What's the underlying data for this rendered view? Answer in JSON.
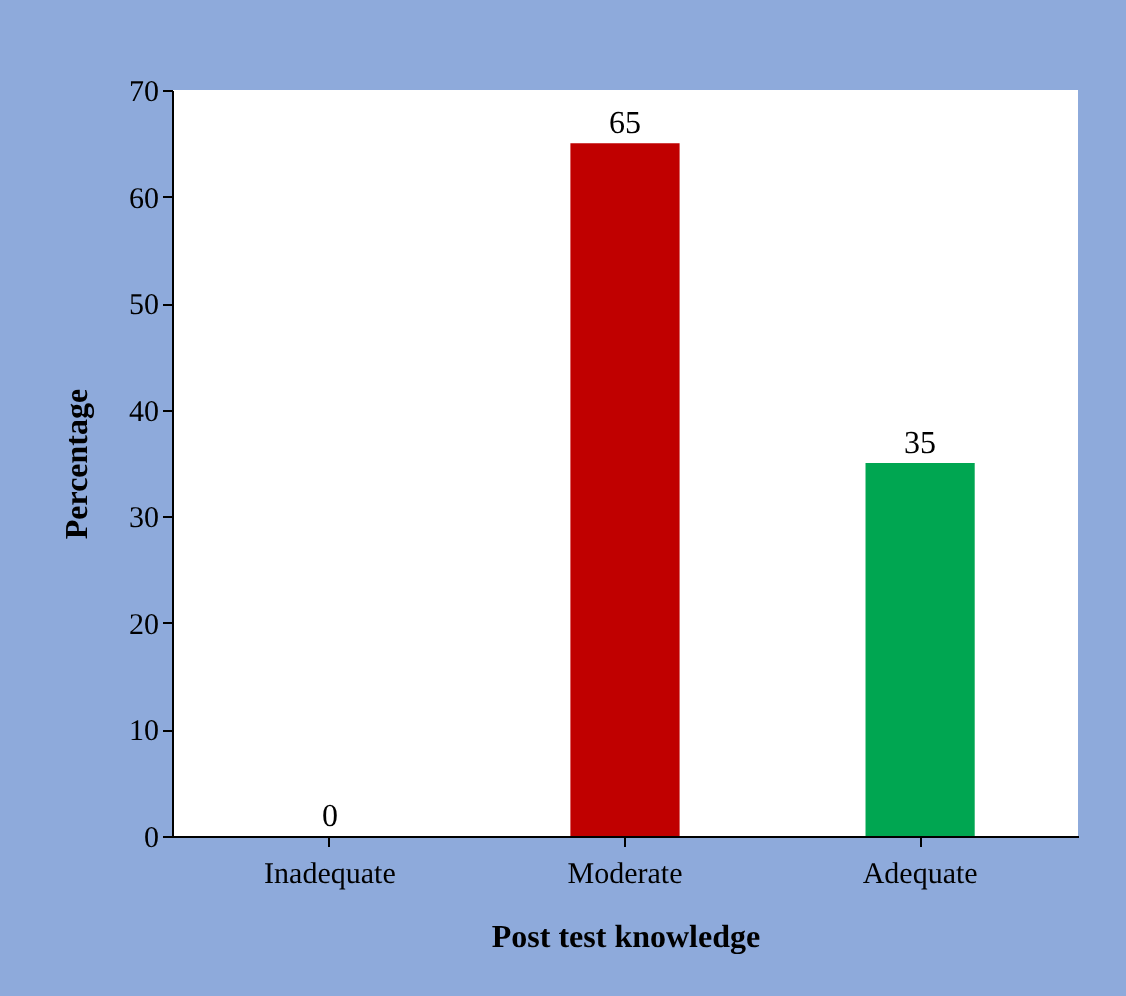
{
  "chart_data": {
    "type": "bar",
    "xlabel": "Post test knowledge",
    "ylabel": "Percentage",
    "categories": [
      "Inadequate",
      "Moderate",
      "Adequate"
    ],
    "values": [
      0,
      65,
      35
    ],
    "colors": [
      "#c00000",
      "#c00000",
      "#00a651"
    ],
    "ylim": [
      0,
      70
    ],
    "yticks": [
      0,
      10,
      20,
      30,
      40,
      50,
      60,
      70
    ],
    "data_labels": true,
    "grid": false
  }
}
